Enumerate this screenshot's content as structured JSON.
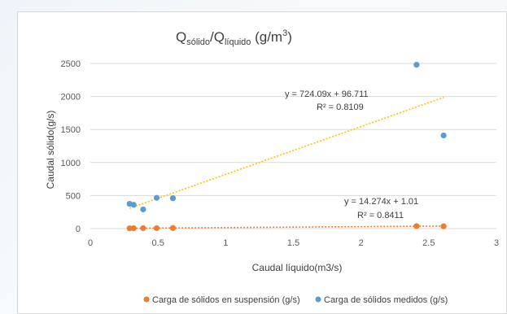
{
  "chart_data": {
    "type": "scatter",
    "title": {
      "main_q1": "Q",
      "sub_1": "sólido",
      "slash": "/",
      "main_q2": "Q",
      "sub_2": "líquido",
      "unit_pre": " (g/m",
      "unit_sup": "3",
      "unit_post": ")"
    },
    "xlabel": "Caudal líquido(m3/s)",
    "ylabel": "Caudal sólido(g/s)",
    "xlim": [
      0,
      3
    ],
    "ylim": [
      0,
      2500
    ],
    "x_ticks": [
      "0",
      "0.5",
      "1",
      "1.5",
      "2",
      "2.5",
      "3"
    ],
    "y_ticks": [
      "0",
      "500",
      "1000",
      "1500",
      "2000",
      "2500"
    ],
    "grid": "horizontal",
    "legend_position": "bottom",
    "series": [
      {
        "name": "Carga de sólidos en suspensión (g/s)",
        "color": "#ed7d31",
        "points": [
          {
            "x": 0.29,
            "y": 4
          },
          {
            "x": 0.32,
            "y": 5
          },
          {
            "x": 0.39,
            "y": 6
          },
          {
            "x": 0.49,
            "y": 7
          },
          {
            "x": 0.61,
            "y": 9
          },
          {
            "x": 2.41,
            "y": 38
          },
          {
            "x": 2.61,
            "y": 35
          }
        ],
        "trendline": {
          "color": "#ed7d31",
          "slope": 14.274,
          "intercept": 1.01,
          "equation": "y = 14.274x + 1.01",
          "r2": "R² = 0.8411"
        }
      },
      {
        "name": "Carga de sólidos medidos (g/s)",
        "color": "#5b9bd5",
        "points": [
          {
            "x": 0.29,
            "y": 375
          },
          {
            "x": 0.32,
            "y": 360
          },
          {
            "x": 0.39,
            "y": 290
          },
          {
            "x": 0.49,
            "y": 465
          },
          {
            "x": 0.61,
            "y": 460
          },
          {
            "x": 2.41,
            "y": 2480
          },
          {
            "x": 2.61,
            "y": 1410
          }
        ],
        "trendline": {
          "color": "#ffc000",
          "slope": 724.09,
          "intercept": 96.711,
          "equation": "y = 724.09x + 96.711",
          "r2": "R² = 0.8109"
        }
      }
    ]
  }
}
